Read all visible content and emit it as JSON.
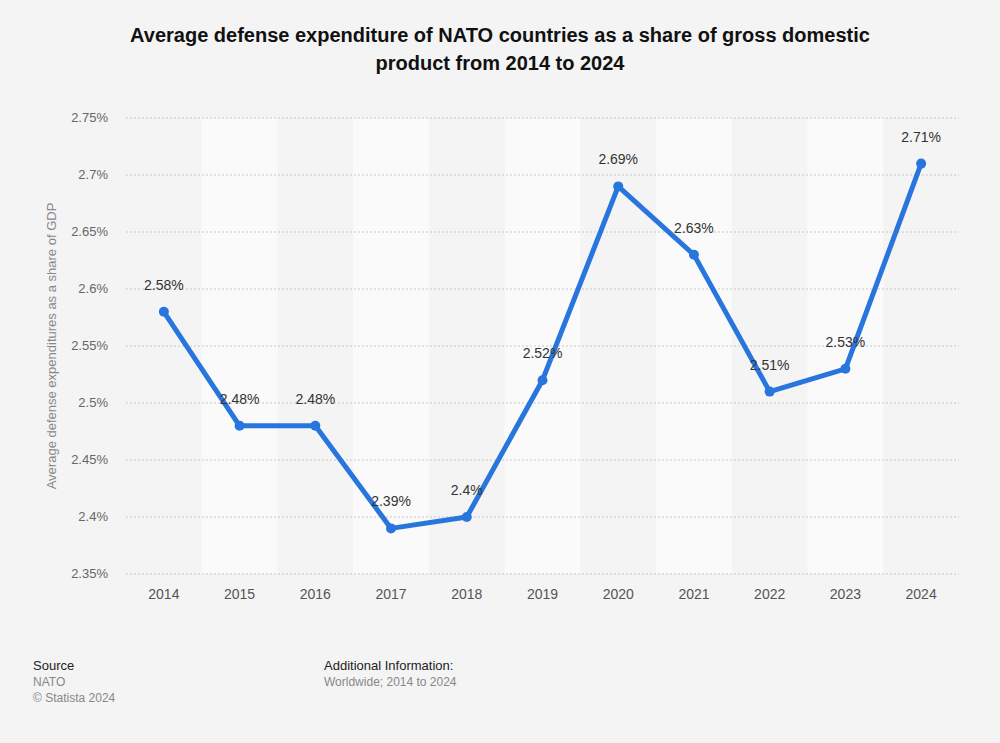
{
  "chart_data": {
    "type": "line",
    "title": "Average defense expenditure of NATO countries as a share of gross domestic product from 2014 to 2024",
    "y_label": "Average defense expenditures as a share of GDP",
    "categories": [
      "2014",
      "2015",
      "2016",
      "2017",
      "2018",
      "2019",
      "2020",
      "2021",
      "2022",
      "2023",
      "2024"
    ],
    "values": [
      2.58,
      2.48,
      2.48,
      2.39,
      2.4,
      2.52,
      2.69,
      2.63,
      2.51,
      2.53,
      2.71
    ],
    "value_labels": [
      "2.58%",
      "2.48%",
      "2.48%",
      "2.39%",
      "2.4%",
      "2.52%",
      "2.69%",
      "2.63%",
      "2.51%",
      "2.53%",
      "2.71%"
    ],
    "color": "#2876dd",
    "marker": "circle",
    "line_style": "solid",
    "data_labels": true,
    "grid": true,
    "ylim": [
      2.35,
      2.75
    ],
    "yticks": [
      {
        "value": 2.35,
        "label": "2.35%"
      },
      {
        "value": 2.4,
        "label": "2.4%"
      },
      {
        "value": 2.45,
        "label": "2.45%"
      },
      {
        "value": 2.5,
        "label": "2.5%"
      },
      {
        "value": 2.55,
        "label": "2.55%"
      },
      {
        "value": 2.6,
        "label": "2.6%"
      },
      {
        "value": 2.65,
        "label": "2.65%"
      },
      {
        "value": 2.7,
        "label": "2.7%"
      },
      {
        "value": 2.75,
        "label": "2.75%"
      }
    ],
    "source_label": "Source",
    "source": "NATO",
    "copyright": "© Statista 2024",
    "info_label": "Additional Information:",
    "info": "Worldwide; 2014 to 2024"
  }
}
